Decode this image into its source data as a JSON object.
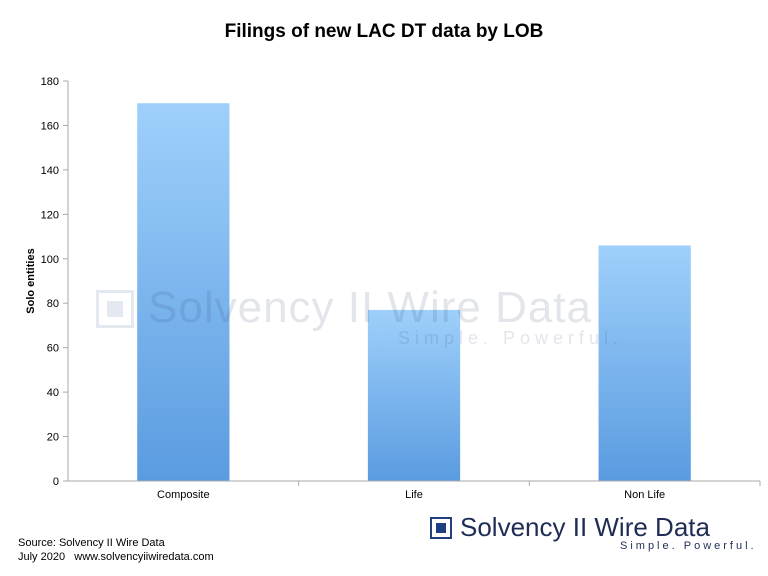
{
  "chart_data": {
    "type": "bar",
    "title": "Filings of new LAC DT data by LOB",
    "xlabel": "",
    "ylabel": "Solo entities",
    "categories": [
      "Composite",
      "Life",
      "Non Life"
    ],
    "values": [
      170,
      77,
      106
    ],
    "ylim": [
      0,
      180
    ],
    "yticks": [
      0,
      20,
      40,
      60,
      80,
      100,
      120,
      140,
      160,
      180
    ],
    "grid": false,
    "bar_color_top": "#9fd0fb",
    "bar_color_bottom": "#5a9be0"
  },
  "watermark": {
    "name": "Solvency II Wire Data",
    "tagline": "Simple. Powerful."
  },
  "source": {
    "line1": "Source: Solvency II Wire Data",
    "line2": "July 2020   www.solvencyiiwiredata.com"
  },
  "logo": {
    "name": "Solvency II Wire Data",
    "tagline": "Simple. Powerful."
  }
}
